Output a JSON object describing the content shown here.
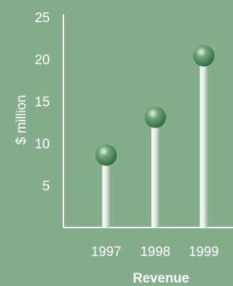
{
  "chart_data": {
    "type": "bar",
    "categories": [
      "1997",
      "1998",
      "1999"
    ],
    "series": [
      {
        "values": [
          8.6,
          13.1,
          20.4
        ]
      }
    ],
    "xlabel": "Revenue",
    "ylabel": "$ million",
    "y_ticks": [
      5,
      10,
      15,
      20,
      25
    ],
    "ylim": [
      0,
      25
    ],
    "grid": false,
    "colors": {
      "background": "#84ae8b",
      "axis": "#ffffff",
      "stem_light": "#ffffff",
      "stem_dark": "#8fb795",
      "ball_light": "#e6f2e6",
      "ball_dark": "#2f6b3c"
    }
  }
}
